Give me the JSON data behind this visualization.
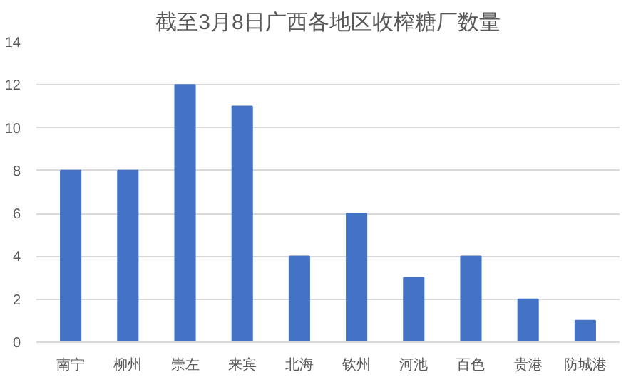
{
  "chart_data": {
    "type": "bar",
    "title": "截至3月8日广西各地区收榨糖厂数量",
    "categories": [
      "南宁",
      "柳州",
      "崇左",
      "来宾",
      "北海",
      "钦州",
      "河池",
      "百色",
      "贵港",
      "防城港"
    ],
    "values": [
      8,
      8,
      12,
      11,
      4,
      6,
      3,
      4,
      2,
      1
    ],
    "color": "#4472c4",
    "ylim": [
      0,
      14
    ],
    "yticks": [
      0,
      2,
      4,
      6,
      8,
      10,
      12,
      14
    ],
    "grid": "y"
  }
}
